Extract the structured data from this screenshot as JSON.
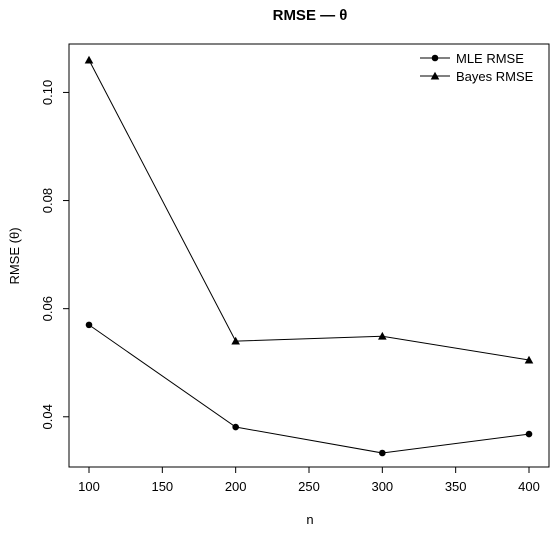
{
  "chart_data": {
    "type": "line",
    "title": "RMSE — θ",
    "xlabel": "n",
    "ylabel": "RMSE (θ)",
    "x": [
      100,
      200,
      300,
      400
    ],
    "xlim": [
      100,
      400
    ],
    "ylim": [
      0.03,
      0.107
    ],
    "x_ticks": [
      100,
      150,
      200,
      250,
      300,
      350,
      400
    ],
    "y_ticks": [
      0.04,
      0.06,
      0.08,
      0.1
    ],
    "x_tick_labels": [
      "100",
      "150",
      "200",
      "250",
      "300",
      "350",
      "400"
    ],
    "y_tick_labels": [
      "0.04",
      "0.06",
      "0.08",
      "0.10"
    ],
    "grid": false,
    "legend_position": "top-right",
    "series": [
      {
        "name": "MLE RMSE",
        "marker": "circle",
        "values": [
          0.057,
          0.0381,
          0.0333,
          0.0368
        ]
      },
      {
        "name": "Bayes RMSE",
        "marker": "triangle",
        "values": [
          0.106,
          0.054,
          0.0549,
          0.0505
        ]
      }
    ]
  }
}
